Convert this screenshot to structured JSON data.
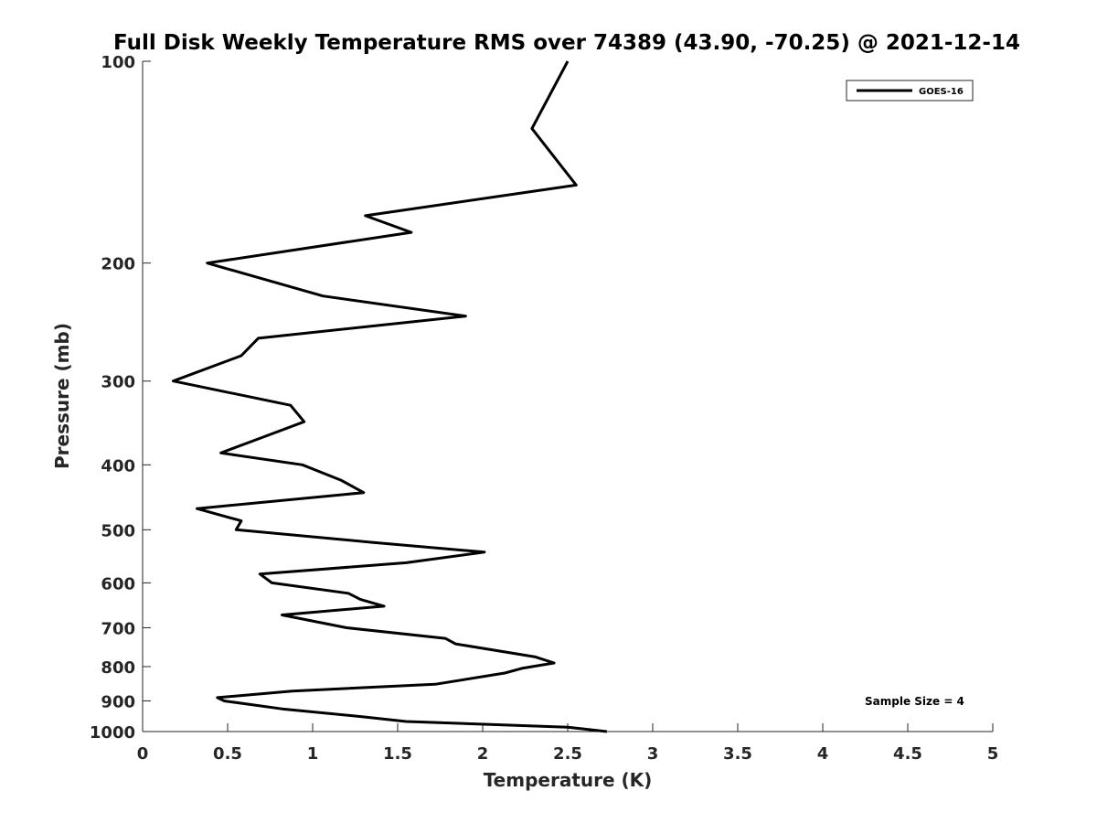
{
  "chart_data": {
    "type": "line",
    "title": "Full Disk Weekly Temperature RMS over 74389 (43.90, -70.25) @ 2021-12-14",
    "xlabel": "Temperature (K)",
    "ylabel": "Pressure (mb)",
    "xlim": [
      0,
      5
    ],
    "ylim": [
      100,
      1000
    ],
    "yscale": "log",
    "yreversed": true,
    "xticks": [
      0,
      0.5,
      1,
      1.5,
      2,
      2.5,
      3,
      3.5,
      4,
      4.5,
      5
    ],
    "xtick_labels": [
      "0",
      "0.5",
      "1",
      "1.5",
      "2",
      "2.5",
      "3",
      "3.5",
      "4",
      "4.5",
      "5"
    ],
    "yticks": [
      100,
      200,
      300,
      400,
      500,
      600,
      700,
      800,
      900,
      1000
    ],
    "ytick_labels": [
      "100",
      "200",
      "300",
      "400",
      "500",
      "600",
      "700",
      "800",
      "900",
      "1000"
    ],
    "grid": false,
    "legend_position": "top-right",
    "series": [
      {
        "name": "GOES-16",
        "color": "#000000",
        "points": [
          [
            2.5,
            100
          ],
          [
            2.29,
            126
          ],
          [
            2.55,
            153
          ],
          [
            1.31,
            170
          ],
          [
            1.58,
            180
          ],
          [
            0.38,
            200
          ],
          [
            1.06,
            224
          ],
          [
            1.9,
            240
          ],
          [
            0.68,
            259
          ],
          [
            0.58,
            275
          ],
          [
            0.18,
            300
          ],
          [
            0.87,
            326
          ],
          [
            0.95,
            345
          ],
          [
            0.68,
            366
          ],
          [
            0.46,
            384
          ],
          [
            0.94,
            400
          ],
          [
            1.17,
            422
          ],
          [
            1.3,
            440
          ],
          [
            0.32,
            465
          ],
          [
            0.58,
            485
          ],
          [
            0.55,
            500
          ],
          [
            1.35,
            522
          ],
          [
            2.01,
            540
          ],
          [
            1.55,
            560
          ],
          [
            0.69,
            582
          ],
          [
            0.76,
            600
          ],
          [
            1.21,
            622
          ],
          [
            1.28,
            635
          ],
          [
            1.42,
            650
          ],
          [
            0.82,
            670
          ],
          [
            1.2,
            700
          ],
          [
            1.78,
            726
          ],
          [
            1.84,
            740
          ],
          [
            2.31,
            774
          ],
          [
            2.42,
            790
          ],
          [
            2.23,
            805
          ],
          [
            2.13,
            818
          ],
          [
            1.72,
            850
          ],
          [
            0.88,
            870
          ],
          [
            0.44,
            890
          ],
          [
            0.48,
            900
          ],
          [
            0.82,
            925
          ],
          [
            1.29,
            950
          ],
          [
            1.55,
            966
          ],
          [
            2.5,
            985
          ],
          [
            2.73,
            1000
          ]
        ]
      }
    ],
    "annotations": [
      {
        "text": "Sample Size = 4",
        "position": "bottom-right"
      }
    ]
  }
}
